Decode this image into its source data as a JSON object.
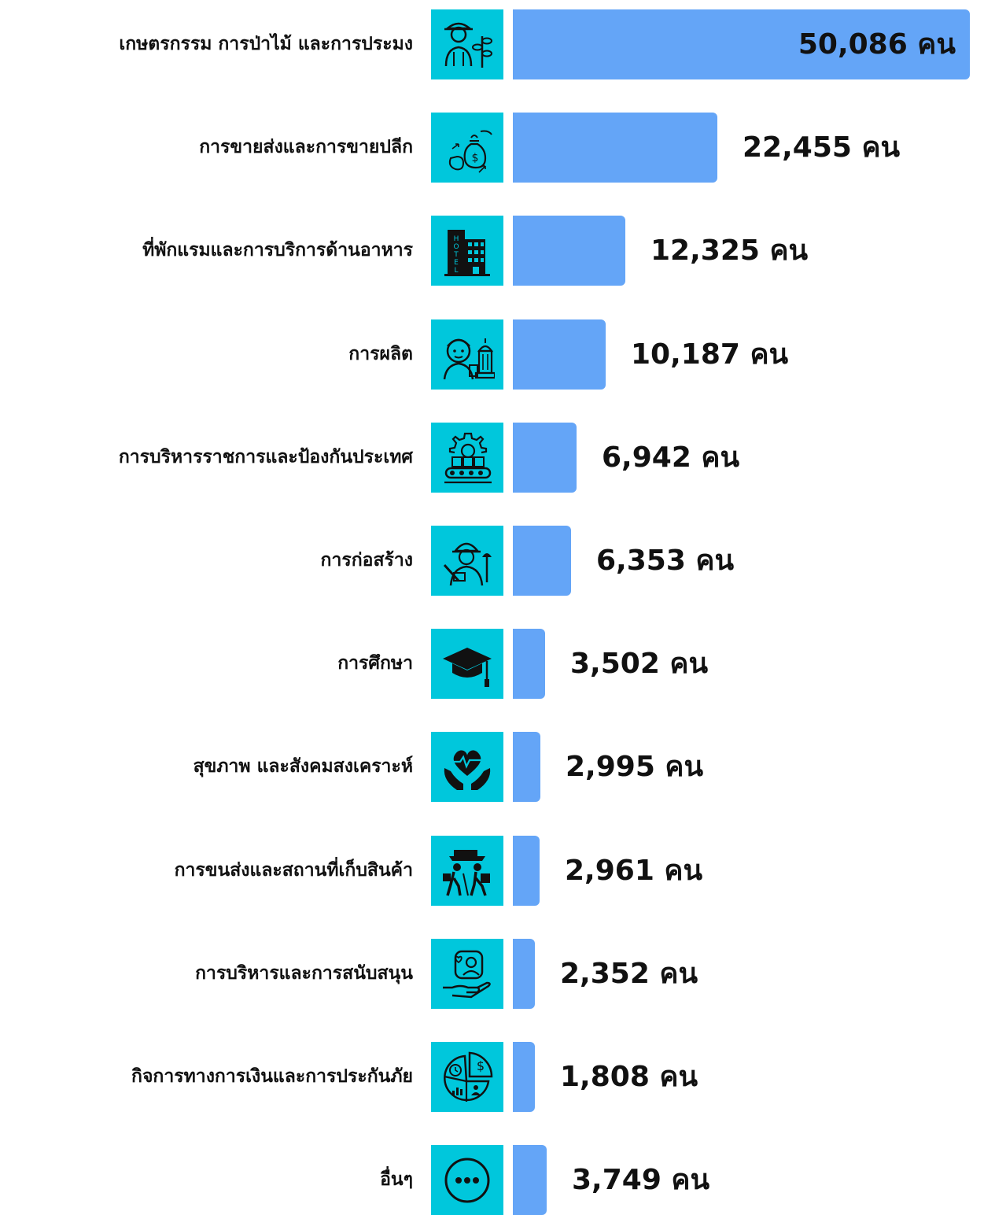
{
  "chart_data": {
    "type": "bar",
    "orientation": "horizontal",
    "unit": "คน",
    "bar_color": "#64a5f7",
    "icon_bg_color": "#00c7dc",
    "categories": [
      {
        "label": "เกษตรกรรม การป่าไม้ และการประมง",
        "value": 50086,
        "value_label": "50,086 คน",
        "icon": "farmer-icon"
      },
      {
        "label": "การขายส่งและการขายปลีก",
        "value": 22455,
        "value_label": "22,455 คน",
        "icon": "money-bag-exchange-icon"
      },
      {
        "label": "ที่พักแรมและการบริการด้านอาหาร",
        "value": 12325,
        "value_label": "12,325 คน",
        "icon": "hotel-icon"
      },
      {
        "label": "การผลิต",
        "value": 10187,
        "value_label": "10,187 คน",
        "icon": "factory-worker-icon"
      },
      {
        "label": "การบริหารราชการและป้องกันประเทศ",
        "value": 6942,
        "value_label": "6,942 คน",
        "icon": "conveyor-gear-icon"
      },
      {
        "label": "การก่อสร้าง",
        "value": 6353,
        "value_label": "6,353 คน",
        "icon": "construction-worker-icon"
      },
      {
        "label": "การศึกษา",
        "value": 3502,
        "value_label": "3,502 คน",
        "icon": "graduation-cap-icon"
      },
      {
        "label": "สุขภาพ และสังคมสงเคราะห์",
        "value": 2995,
        "value_label": "2,995 คน",
        "icon": "heart-hands-icon"
      },
      {
        "label": "การขนส่งและสถานที่เก็บสินค้า",
        "value": 2961,
        "value_label": "2,961 คน",
        "icon": "delivery-workers-icon"
      },
      {
        "label": "การบริหารและการสนับสนุน",
        "value": 2352,
        "value_label": "2,352 คน",
        "icon": "support-hand-profile-icon"
      },
      {
        "label": "กิจการทางการเงินและการประกันภัย",
        "value": 1808,
        "value_label": "1,808 คน",
        "icon": "finance-pie-icon"
      },
      {
        "label": "อื่นๆ",
        "value": 3749,
        "value_label": "3,749 คน",
        "icon": "more-dots-icon"
      }
    ]
  }
}
